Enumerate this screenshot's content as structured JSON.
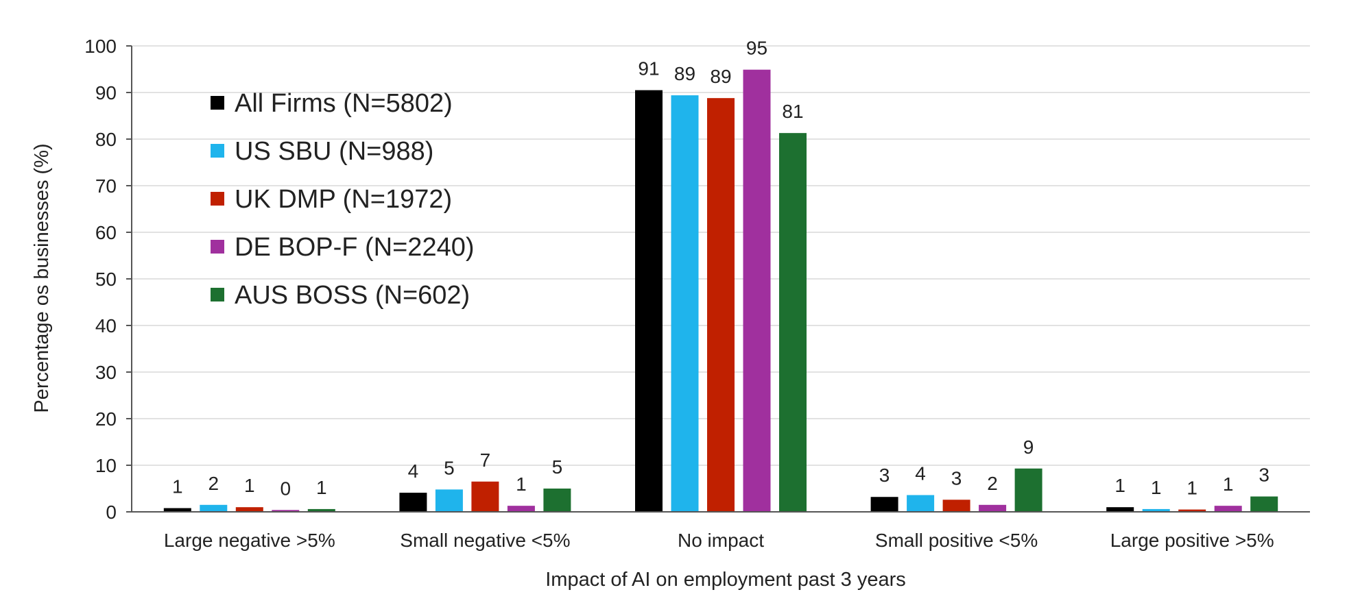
{
  "chart_data": {
    "type": "bar",
    "title": "",
    "xlabel": "Impact of AI on employment past 3 years",
    "ylabel": "Percentage os businesses (%)",
    "ylim": [
      0,
      100
    ],
    "yticks": [
      0,
      10,
      20,
      30,
      40,
      50,
      60,
      70,
      80,
      90,
      100
    ],
    "grid": true,
    "legend_position": "top-left",
    "categories": [
      "Large negative >5%",
      "Small negative <5%",
      "No impact",
      "Small positive <5%",
      "Large positive >5%"
    ],
    "series": [
      {
        "name": "All Firms (N=5802)",
        "color": "#000000",
        "values": [
          0.8,
          4.1,
          90.5,
          3.2,
          1.0
        ],
        "labels": [
          "1",
          "4",
          "91",
          "3",
          "1"
        ]
      },
      {
        "name": "US SBU (N=988)",
        "color": "#1fb4ec",
        "values": [
          1.5,
          4.8,
          89.4,
          3.6,
          0.6
        ],
        "labels": [
          "2",
          "5",
          "89",
          "4",
          "1"
        ]
      },
      {
        "name": "UK DMP (N=1972)",
        "color": "#c02000",
        "values": [
          1.0,
          6.5,
          88.8,
          2.6,
          0.5
        ],
        "labels": [
          "1",
          "7",
          "89",
          "3",
          "1"
        ]
      },
      {
        "name": "DE BOP-F (N=2240)",
        "color": "#a0309e",
        "values": [
          0.4,
          1.3,
          94.9,
          1.5,
          1.3
        ],
        "labels": [
          "0",
          "1",
          "95",
          "2",
          "1"
        ]
      },
      {
        "name": "AUS BOSS (N=602)",
        "color": "#1d7030",
        "values": [
          0.6,
          5.0,
          81.3,
          9.3,
          3.3
        ],
        "labels": [
          "1",
          "5",
          "81",
          "9",
          "3"
        ]
      }
    ]
  }
}
